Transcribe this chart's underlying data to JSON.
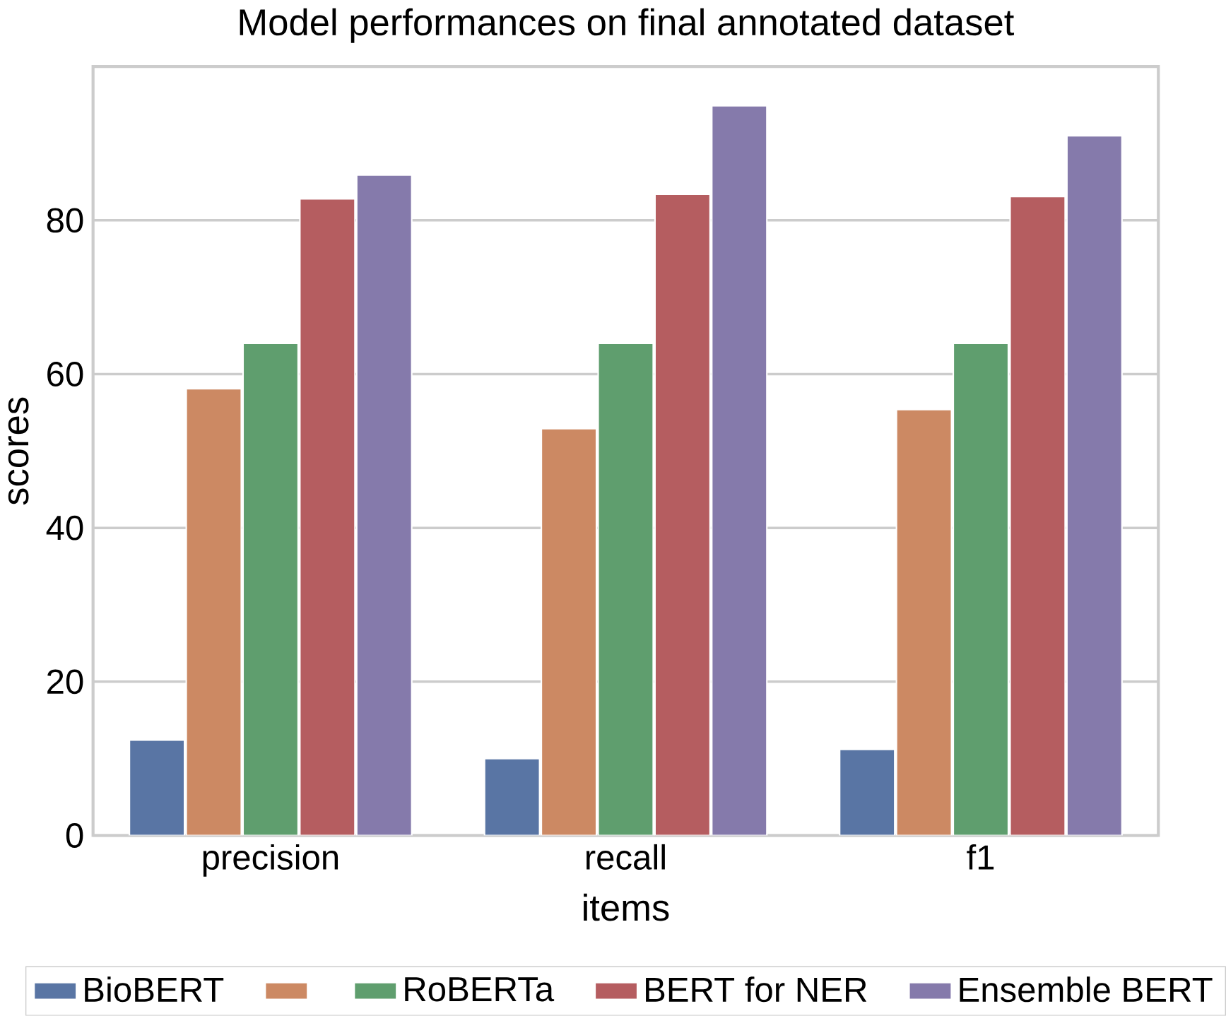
{
  "chart_data": {
    "type": "bar",
    "title": "Model performances on final annotated dataset",
    "xlabel": "items",
    "ylabel": "scores",
    "categories": [
      "precision",
      "recall",
      "f1"
    ],
    "series": [
      {
        "name": "BioBERT",
        "color": "#5975a4",
        "values": [
          12.4,
          10.0,
          11.2
        ]
      },
      {
        "color": "#cc8963",
        "values": [
          58.1,
          52.9,
          55.4
        ]
      },
      {
        "name": "RoBERTa",
        "color": "#5f9e6e",
        "values": [
          64.0,
          64.0,
          64.0
        ]
      },
      {
        "name": "BERT for NER",
        "color": "#b55d60",
        "values": [
          82.8,
          83.4,
          83.1
        ]
      },
      {
        "name": "Ensemble BERT",
        "color": "#857aab",
        "values": [
          85.9,
          94.9,
          91.0
        ]
      }
    ],
    "ylim": [
      0,
      100
    ],
    "yticks": [
      0,
      20,
      40,
      60,
      80
    ],
    "grid": "y",
    "legend": "bottom"
  }
}
